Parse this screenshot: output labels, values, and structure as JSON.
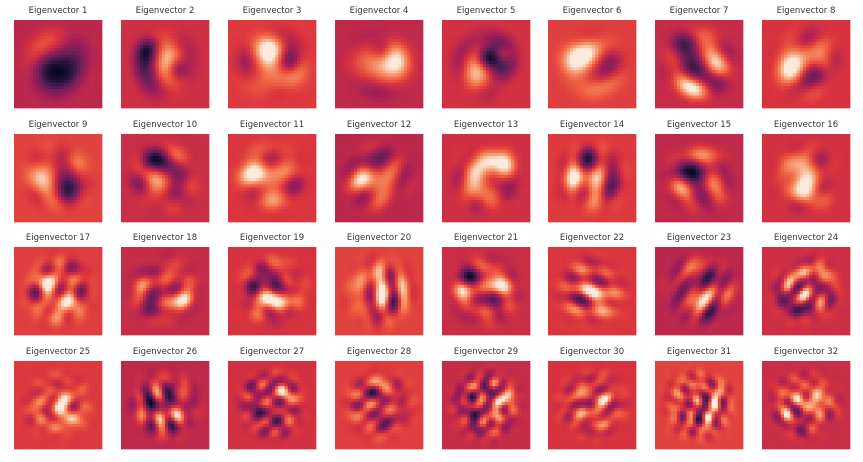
{
  "figure": {
    "title": "",
    "colormap": "rocket"
  },
  "chart_data": {
    "type": "heatmap",
    "grid": false,
    "image_resolution": [
      28,
      28
    ],
    "colormap": "rocket",
    "panels": [
      {
        "title": "Eigenvector 1"
      },
      {
        "title": "Eigenvector 2"
      },
      {
        "title": "Eigenvector 3"
      },
      {
        "title": "Eigenvector 4"
      },
      {
        "title": "Eigenvector 5"
      },
      {
        "title": "Eigenvector 6"
      },
      {
        "title": "Eigenvector 7"
      },
      {
        "title": "Eigenvector 8"
      },
      {
        "title": "Eigenvector 9"
      },
      {
        "title": "Eigenvector 10"
      },
      {
        "title": "Eigenvector 11"
      },
      {
        "title": "Eigenvector 12"
      },
      {
        "title": "Eigenvector 13"
      },
      {
        "title": "Eigenvector 14"
      },
      {
        "title": "Eigenvector 15"
      },
      {
        "title": "Eigenvector 16"
      },
      {
        "title": "Eigenvector 17"
      },
      {
        "title": "Eigenvector 18"
      },
      {
        "title": "Eigenvector 19"
      },
      {
        "title": "Eigenvector 20"
      },
      {
        "title": "Eigenvector 21"
      },
      {
        "title": "Eigenvector 22"
      },
      {
        "title": "Eigenvector 23"
      },
      {
        "title": "Eigenvector 24"
      },
      {
        "title": "Eigenvector 25"
      },
      {
        "title": "Eigenvector 26"
      },
      {
        "title": "Eigenvector 27"
      },
      {
        "title": "Eigenvector 28"
      },
      {
        "title": "Eigenvector 29"
      },
      {
        "title": "Eigenvector 30"
      },
      {
        "title": "Eigenvector 31"
      },
      {
        "title": "Eigenvector 32"
      }
    ]
  }
}
